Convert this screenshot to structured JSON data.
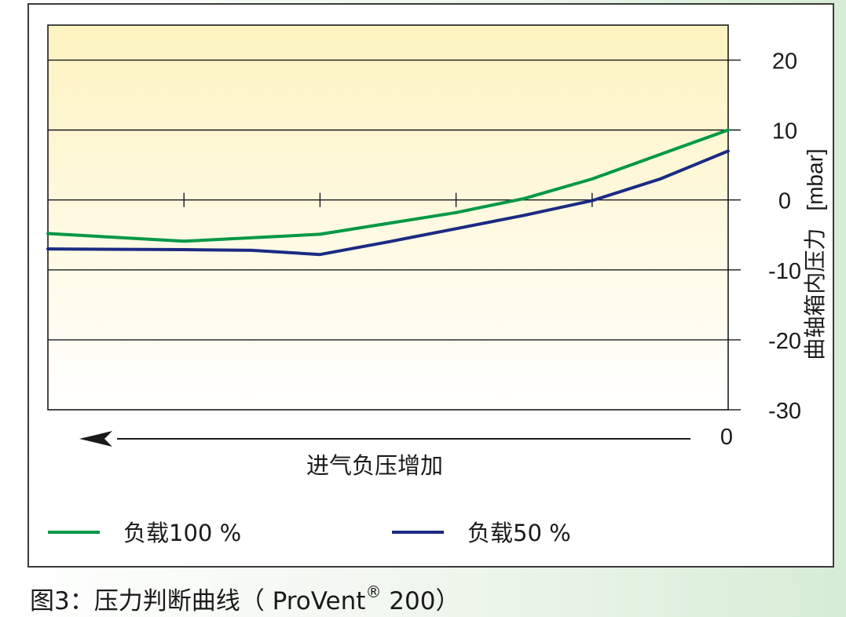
{
  "caption": {
    "prefix": "图3：压力判断曲线（ ProVent",
    "registered": "®",
    "suffix": " 200）"
  },
  "colors": {
    "background_top": "#fdf3c0",
    "background_bottom": "#ffffff",
    "green_series": "#009846",
    "blue_series": "#1b2a83",
    "axis": "#1a1a1a"
  },
  "chart_data": {
    "type": "line",
    "title": "",
    "xlabel": "进气负压增加",
    "x_zero_label": "0",
    "x_direction": "right-to-left",
    "x_major_ticks": [
      0,
      1,
      2,
      3,
      4,
      5
    ],
    "ylabel": "曲轴箱内压力",
    "ylabel_unit": "[mbar]",
    "y_tick_labels": [
      "20",
      "10",
      "0",
      "-10",
      "-20",
      "-30"
    ],
    "y_ticks": [
      20,
      10,
      0,
      -10,
      -20,
      -30
    ],
    "ylim": [
      -30,
      25
    ],
    "xlim": [
      0,
      5
    ],
    "grid": true,
    "legend_placement": "bottom",
    "series": [
      {
        "name": "负载100 %",
        "color": "#009846",
        "x": [
          5,
          4,
          3,
          2,
          1.5,
          1,
          0.5,
          0
        ],
        "y": [
          -4.8,
          -5.9,
          -4.9,
          -1.8,
          0.2,
          3.0,
          6.5,
          10.0
        ]
      },
      {
        "name": "负载50 %",
        "color": "#1b2a83",
        "x": [
          5,
          4,
          3.5,
          3,
          2.5,
          2,
          1.5,
          1,
          0.5,
          0
        ],
        "y": [
          -7.0,
          -7.1,
          -7.2,
          -7.8,
          -6.0,
          -4.1,
          -2.2,
          -0.1,
          3.0,
          7.0
        ]
      }
    ]
  }
}
